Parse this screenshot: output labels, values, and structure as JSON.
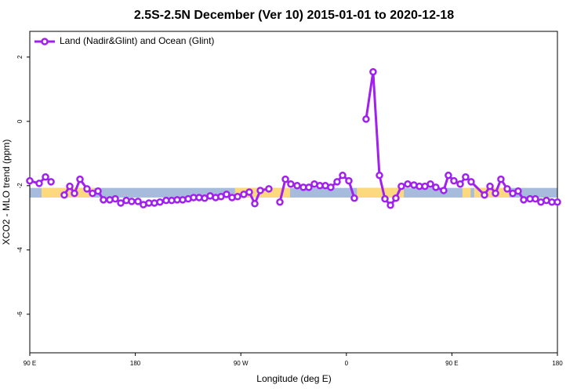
{
  "chart_data": {
    "type": "line",
    "title": "2.5S-2.5N December (Ver 10)   2015-01-01 to 2020-12-18",
    "xlabel": "Longitude (deg E)",
    "ylabel": "XCO2 - MLO trend (ppm)",
    "xlim": [
      90,
      540
    ],
    "ylim": [
      -7.2,
      2.8
    ],
    "xticks": [
      {
        "value": 90,
        "label": "90 E"
      },
      {
        "value": 180,
        "label": "180"
      },
      {
        "value": 270,
        "label": "90 W"
      },
      {
        "value": 360,
        "label": "0"
      },
      {
        "value": 450,
        "label": "90 E"
      },
      {
        "value": 540,
        "label": "180"
      }
    ],
    "yticks": [
      -6,
      -4,
      -2,
      0,
      2
    ],
    "legend": "top-left",
    "band": {
      "range": [
        -2.37,
        -2.07
      ],
      "color": "#a7bcdc",
      "land_color": "#fcd97f",
      "land": [
        [
          100,
          145
        ],
        [
          265,
          312
        ],
        [
          369,
          409
        ],
        [
          459,
          466
        ],
        [
          469,
          499
        ]
      ]
    },
    "x": [
      90,
      98,
      103.4,
      108.1,
      113.4,
      119.4,
      124.1,
      128.1,
      132.8,
      138.8,
      143.5,
      148.2,
      152.8,
      158.2,
      162.9,
      167.6,
      172.3,
      176.9,
      182.3,
      186.9,
      191.6,
      196.3,
      201,
      206.3,
      211,
      215.7,
      220.4,
      225.1,
      229.7,
      234.4,
      239.1,
      243.8,
      248.5,
      253.1,
      257.8,
      262.5,
      267.2,
      272.5,
      277.2,
      281.9,
      286.6,
      293.9,
      298.6,
      303.3,
      308,
      312.6,
      318,
      323.3,
      328,
      332.7,
      337.4,
      342.1,
      346.7,
      352.1,
      356.8,
      362.1,
      366.8,
      372.1,
      376.8,
      382.8,
      388.2,
      392.9,
      397.6,
      402.2,
      406.9,
      412.3,
      417.6,
      422.3,
      427,
      431.7,
      436.3,
      443,
      447,
      451.7,
      457.1,
      461.7,
      466.4,
      477.8,
      482.5,
      487.2,
      491.8,
      497.2,
      501.9,
      506.5,
      511.2,
      516.6,
      521.2,
      525.9,
      530.6,
      535.3,
      540
    ],
    "series": [
      {
        "name": "Land (Nadir&Glint) and Ocean (Glint)",
        "color": "#a020f0",
        "values": [
          -1.85,
          -1.93,
          -1.73,
          -1.88,
          null,
          -2.29,
          -2.02,
          -2.24,
          -1.8,
          -2.1,
          -2.24,
          -2.17,
          -2.44,
          -2.44,
          -2.41,
          -2.54,
          -2.46,
          -2.49,
          -2.49,
          -2.59,
          -2.54,
          -2.54,
          -2.51,
          -2.46,
          -2.46,
          -2.44,
          -2.44,
          -2.41,
          -2.37,
          -2.37,
          -2.39,
          -2.32,
          -2.37,
          -2.34,
          -2.27,
          -2.37,
          -2.34,
          -2.27,
          -2.2,
          -2.56,
          -2.15,
          -2.1,
          null,
          -2.51,
          -1.8,
          -1.95,
          -2.0,
          -2.05,
          -2.05,
          -1.95,
          -2.0,
          -2.0,
          -2.05,
          -1.88,
          -1.68,
          -1.85,
          -2.39,
          null,
          0.07,
          1.54,
          -1.68,
          -2.41,
          -2.61,
          -2.39,
          -2.02,
          -1.95,
          -1.98,
          -2.02,
          -2.02,
          -1.95,
          -2.05,
          -2.15,
          -1.68,
          -1.85,
          -1.95,
          -1.73,
          -1.88,
          -2.29,
          -2.02,
          -2.24,
          -1.8,
          -2.1,
          -2.24,
          -2.17,
          -2.44,
          -2.41,
          -2.41,
          -2.51,
          -2.46,
          -2.51,
          -2.51
        ]
      }
    ]
  }
}
